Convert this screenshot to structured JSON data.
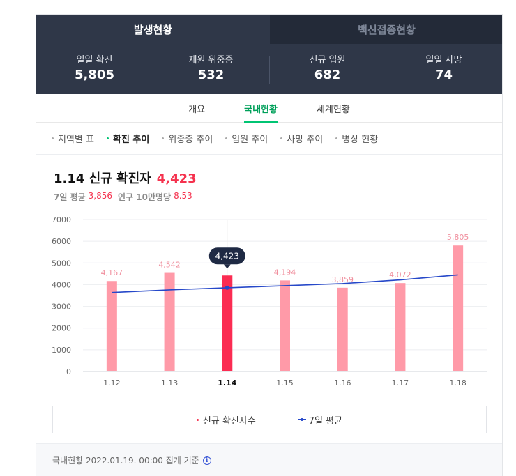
{
  "top_tabs": [
    {
      "label": "발생현황",
      "active": true
    },
    {
      "label": "백신접종현황",
      "active": false
    }
  ],
  "stats": [
    {
      "label": "일일 확진",
      "value": "5,805"
    },
    {
      "label": "재원 위중증",
      "value": "532"
    },
    {
      "label": "신규 입원",
      "value": "682"
    },
    {
      "label": "일일 사망",
      "value": "74"
    }
  ],
  "sub_tabs": [
    {
      "label": "개요",
      "active": false
    },
    {
      "label": "국내현황",
      "active": true
    },
    {
      "label": "세계현황",
      "active": false
    }
  ],
  "filters": [
    {
      "label": "지역별 표",
      "active": false
    },
    {
      "label": "확진 추이",
      "active": true
    },
    {
      "label": "위중증 추이",
      "active": false
    },
    {
      "label": "입원 추이",
      "active": false
    },
    {
      "label": "사망 추이",
      "active": false
    },
    {
      "label": "병상 현황",
      "active": false
    }
  ],
  "heading": {
    "label": "1.14 신규 확진자",
    "value": "4,423",
    "avg_label": "7일 평균",
    "avg_value": "3,856",
    "per_label": "인구 10만명당",
    "per_value": "8.53"
  },
  "chart_data": {
    "type": "bar",
    "categories": [
      "1.12",
      "1.13",
      "1.14",
      "1.15",
      "1.16",
      "1.17",
      "1.18"
    ],
    "selected_index": 2,
    "series": [
      {
        "name": "신규 확진자수",
        "values": [
          4167,
          4542,
          4423,
          4194,
          3859,
          4072,
          5805
        ],
        "color": "#ff9aa8",
        "highlight_color": "#fb2c52"
      },
      {
        "name": "7일 평균",
        "type": "line",
        "values": [
          3640,
          3760,
          3856,
          3950,
          4050,
          4220,
          4450
        ],
        "color": "#2648c9"
      }
    ],
    "data_labels": [
      "4,167",
      "4,542",
      "4,423",
      "4,194",
      "3,859",
      "4,072",
      "5,805"
    ],
    "y_ticks": [
      0,
      1000,
      2000,
      3000,
      4000,
      5000,
      6000,
      7000
    ],
    "ylim": [
      0,
      7000
    ],
    "grid": true,
    "tooltip_text": "4,423",
    "legend_position": "bottom"
  },
  "legend": {
    "bars_label": "신규 확진자수",
    "line_label": "7일 평균"
  },
  "footer": {
    "text": "국내현황 2022.01.19. 00:00 집계 기준",
    "icon": "info-icon"
  }
}
